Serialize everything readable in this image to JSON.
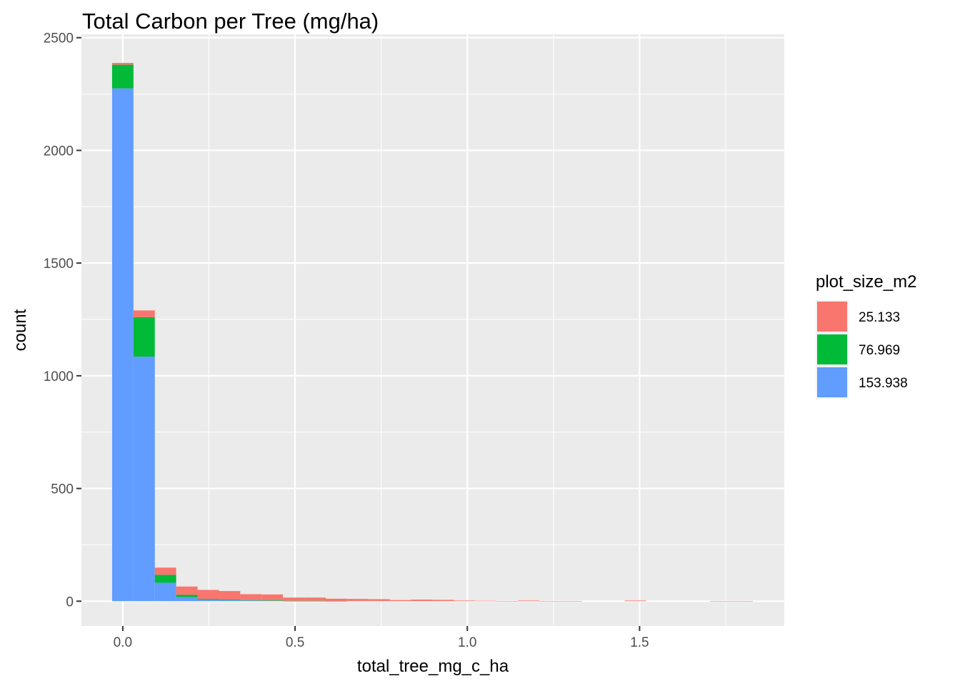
{
  "chart_data": {
    "type": "histogram",
    "title": "Total Carbon per Tree (mg/ha)",
    "xlabel": "total_tree_mg_c_ha",
    "ylabel": "count",
    "xlim": [
      -0.12,
      1.92
    ],
    "ylim": [
      -110,
      2515
    ],
    "x_ticks": [
      0.0,
      0.5,
      1.0,
      1.5
    ],
    "x_tick_labels": [
      "0.0",
      "0.5",
      "1.0",
      "1.5"
    ],
    "y_ticks": [
      0,
      500,
      1000,
      1500,
      2000,
      2500
    ],
    "y_tick_labels": [
      "0",
      "500",
      "1000",
      "1500",
      "2000",
      "2500"
    ],
    "grid": true,
    "stacked": true,
    "bin_width": 0.062,
    "bin_centers": [
      0.0,
      0.062,
      0.124,
      0.186,
      0.248,
      0.31,
      0.372,
      0.434,
      0.496,
      0.558,
      0.62,
      0.682,
      0.744,
      0.806,
      0.868,
      0.93,
      0.992,
      1.054,
      1.116,
      1.178,
      1.24,
      1.302,
      1.364,
      1.426,
      1.488,
      1.55,
      1.612,
      1.674,
      1.736,
      1.798
    ],
    "legend": {
      "title": "plot_size_m2",
      "position": "right"
    },
    "series": [
      {
        "name": "153.938",
        "color": "#619CFF",
        "values": [
          2275,
          1085,
          82,
          18,
          6,
          4,
          3,
          2,
          1,
          1,
          0,
          0,
          0,
          0,
          0,
          0,
          0,
          0,
          0,
          0,
          0,
          0,
          0,
          0,
          0,
          0,
          0,
          0,
          0,
          0
        ]
      },
      {
        "name": "76.969",
        "color": "#00BA38",
        "values": [
          105,
          175,
          35,
          10,
          4,
          3,
          2,
          2,
          1,
          1,
          1,
          0,
          0,
          0,
          0,
          0,
          0,
          0,
          0,
          0,
          0,
          0,
          0,
          0,
          0,
          0,
          0,
          0,
          0,
          0
        ]
      },
      {
        "name": "25.133",
        "color": "#F8766D",
        "values": [
          8,
          30,
          32,
          37,
          40,
          38,
          26,
          26,
          14,
          14,
          10,
          10,
          9,
          5,
          7,
          6,
          3,
          2,
          1,
          3,
          1,
          1,
          0,
          0,
          3,
          0,
          0,
          0,
          1,
          1
        ]
      }
    ]
  }
}
